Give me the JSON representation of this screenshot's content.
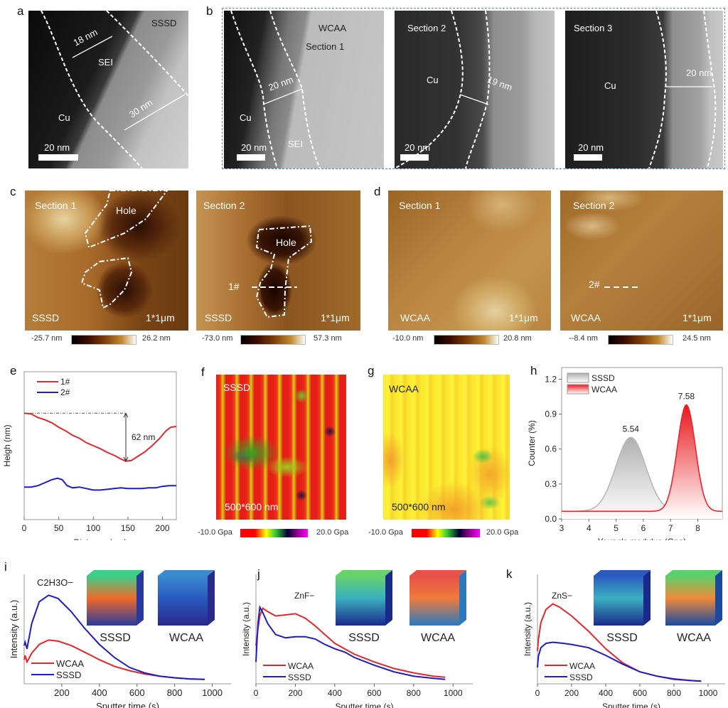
{
  "panels": {
    "a": {
      "label": "a",
      "sample": "SSSD",
      "region_label": "SEI",
      "substrate": "Cu",
      "thickness_1": "18 nm",
      "thickness_2": "30 nm",
      "scale_bar": "20 nm"
    },
    "b": {
      "label": "b",
      "sections": [
        {
          "sample": "WCAA",
          "section": "Section 1",
          "substrate": "Cu",
          "region_label": "SEI",
          "thickness": "20 nm",
          "scale_bar": "20 nm"
        },
        {
          "section": "Section 2",
          "substrate": "Cu",
          "thickness": "19 nm",
          "scale_bar": "20 nm"
        },
        {
          "section": "Section 3",
          "substrate": "Cu",
          "thickness": "20 nm",
          "scale_bar": "20 nm"
        }
      ]
    },
    "c": {
      "label": "c",
      "maps": [
        {
          "section": "Section 1",
          "sample": "SSSD",
          "size": "1*1μm",
          "hole_label": "Hole",
          "cb_min": "-25.7 nm",
          "cb_max": "26.2 nm"
        },
        {
          "section": "Section 2",
          "sample": "SSSD",
          "size": "1*1μm",
          "hole_label": "Hole",
          "line_label": "1#",
          "cb_min": "-73.0 nm",
          "cb_max": "57.3 nm"
        }
      ]
    },
    "d": {
      "label": "d",
      "maps": [
        {
          "section": "Section 1",
          "sample": "WCAA",
          "size": "1*1μm",
          "cb_min": "-10.0 nm",
          "cb_max": "20.8 nm"
        },
        {
          "section": "Section 2",
          "sample": "WCAA",
          "size": "1*1μm",
          "line_label": "2#",
          "cb_min": "--8.4 nm",
          "cb_max": "24.5 nm"
        }
      ]
    },
    "f": {
      "label": "f",
      "sample": "SSSD",
      "size": "500*600 nm",
      "cb_min": "-10.0 Gpa",
      "cb_max": "20.0 Gpa"
    },
    "g": {
      "label": "g",
      "sample": "WCAA",
      "size": "500*600 nm",
      "cb_min": "-10.0 Gpa",
      "cb_max": "20.0 Gpa"
    }
  },
  "colors": {
    "red": "#e8262a",
    "blue": "#1c1cc8",
    "gray": "#b8b8b8"
  },
  "chart_data": [
    {
      "id": "e",
      "panel_label": "e",
      "type": "line",
      "title": "",
      "xlabel": "Distance (nm)",
      "ylabel": "Heigh (nm)",
      "xlim": [
        0,
        220
      ],
      "ylim": [
        0,
        1
      ],
      "xticks": [
        0,
        50,
        100,
        150,
        200
      ],
      "yticks": [],
      "legend": "top-left",
      "annotation": "62 nm",
      "series": [
        {
          "name": "1#",
          "color": "#e8262a",
          "x": [
            0,
            10,
            20,
            30,
            40,
            50,
            60,
            70,
            80,
            90,
            100,
            110,
            120,
            130,
            140,
            147,
            155,
            165,
            175,
            185,
            195,
            205,
            212,
            220
          ],
          "y": [
            0.72,
            0.715,
            0.69,
            0.675,
            0.655,
            0.625,
            0.6,
            0.57,
            0.55,
            0.52,
            0.5,
            0.48,
            0.455,
            0.435,
            0.41,
            0.395,
            0.4,
            0.43,
            0.46,
            0.5,
            0.545,
            0.6,
            0.625,
            0.63
          ]
        },
        {
          "name": "2#",
          "color": "#1c1cc8",
          "x": [
            0,
            10,
            20,
            30,
            40,
            48,
            55,
            62,
            70,
            80,
            90,
            100,
            110,
            120,
            130,
            140,
            150,
            160,
            170,
            180,
            190,
            200,
            210,
            220
          ],
          "y": [
            0.22,
            0.22,
            0.23,
            0.25,
            0.27,
            0.28,
            0.27,
            0.23,
            0.215,
            0.22,
            0.21,
            0.2,
            0.2,
            0.205,
            0.21,
            0.215,
            0.21,
            0.21,
            0.21,
            0.215,
            0.215,
            0.225,
            0.23,
            0.23
          ]
        }
      ]
    },
    {
      "id": "h",
      "panel_label": "h",
      "type": "area",
      "title": "",
      "xlabel": "Young's modulus (Gpa)",
      "ylabel": "Counter (%)",
      "xlim": [
        3,
        8.9
      ],
      "ylim": [
        0,
        1.3
      ],
      "xticks": [
        3,
        4,
        5,
        6,
        7,
        8
      ],
      "yticks": [
        0.0,
        0.3,
        0.6,
        0.9,
        1.2
      ],
      "ytick_labels": [
        "0.0",
        "0.3",
        "0.6",
        "0.9",
        "1.2"
      ],
      "legend": "top-left",
      "series": [
        {
          "name": "SSSD",
          "color": "#b8b8b8",
          "peak_x": 5.54,
          "peak_y": 0.7,
          "baseline": 0.065,
          "sigma": 0.55,
          "peak_label": "5.54"
        },
        {
          "name": "WCAA",
          "color": "#e8262a",
          "peak_x": 7.58,
          "peak_y": 0.98,
          "baseline": 0.065,
          "sigma": 0.33,
          "peak_label": "7.58"
        }
      ]
    },
    {
      "id": "i",
      "panel_label": "i",
      "type": "line",
      "xlabel": "Sputter time (s)",
      "ylabel": "Intensity (a.u.)",
      "xlim": [
        0,
        1100
      ],
      "ylim": [
        0,
        1
      ],
      "xticks": [
        200,
        400,
        600,
        800,
        1000
      ],
      "annotation": "C2H3O−",
      "legend": "bottom-left",
      "inset_labels": [
        "SSSD",
        "WCAA"
      ],
      "series": [
        {
          "name": "WCAA",
          "color": "#e8262a",
          "x": [
            0,
            5,
            15,
            40,
            80,
            130,
            180,
            250,
            320,
            400,
            480,
            560,
            640,
            720,
            800,
            880,
            960
          ],
          "y": [
            0.22,
            0.26,
            0.2,
            0.28,
            0.36,
            0.4,
            0.39,
            0.35,
            0.29,
            0.22,
            0.16,
            0.12,
            0.09,
            0.07,
            0.055,
            0.045,
            0.04
          ]
        },
        {
          "name": "SSSD",
          "color": "#1c1cc8",
          "x": [
            0,
            5,
            15,
            40,
            80,
            130,
            180,
            250,
            320,
            400,
            480,
            560,
            640,
            720,
            800,
            880,
            960
          ],
          "y": [
            0.35,
            0.38,
            0.32,
            0.55,
            0.75,
            0.81,
            0.78,
            0.66,
            0.51,
            0.36,
            0.24,
            0.15,
            0.1,
            0.07,
            0.055,
            0.045,
            0.04
          ]
        }
      ]
    },
    {
      "id": "j",
      "panel_label": "j",
      "type": "line",
      "xlabel": "Sputter time (s)",
      "ylabel": "Intensity (a.u.)",
      "xlim": [
        0,
        1100
      ],
      "ylim": [
        0,
        1
      ],
      "xticks": [
        0,
        200,
        400,
        600,
        800,
        1000
      ],
      "annotation": "ZnF−",
      "legend": "bottom-left",
      "inset_labels": [
        "SSSD",
        "WCAA"
      ],
      "series": [
        {
          "name": "WCAA",
          "color": "#e8262a",
          "x": [
            0,
            10,
            20,
            35,
            60,
            100,
            150,
            200,
            250,
            300,
            350,
            400,
            450,
            500,
            600,
            700,
            800,
            900,
            960
          ],
          "y": [
            0.35,
            0.5,
            0.62,
            0.69,
            0.66,
            0.62,
            0.63,
            0.64,
            0.6,
            0.53,
            0.45,
            0.37,
            0.32,
            0.27,
            0.2,
            0.14,
            0.1,
            0.07,
            0.06
          ]
        },
        {
          "name": "SSSD",
          "color": "#1c1cc8",
          "x": [
            0,
            10,
            20,
            35,
            60,
            100,
            150,
            200,
            250,
            300,
            350,
            400,
            450,
            500,
            600,
            700,
            800,
            900,
            960
          ],
          "y": [
            0.2,
            0.55,
            0.7,
            0.65,
            0.55,
            0.45,
            0.42,
            0.43,
            0.43,
            0.41,
            0.36,
            0.32,
            0.29,
            0.24,
            0.17,
            0.11,
            0.07,
            0.05,
            0.04
          ]
        }
      ]
    },
    {
      "id": "k",
      "panel_label": "k",
      "type": "line",
      "xlabel": "Sputter time (s)",
      "ylabel": "Intensity (a.u.)",
      "xlim": [
        0,
        1100
      ],
      "ylim": [
        0,
        1
      ],
      "xticks": [
        0,
        200,
        400,
        600,
        800,
        1000
      ],
      "annotation": "ZnS−",
      "legend": "bottom-left",
      "inset_labels": [
        "SSSD",
        "WCAA"
      ],
      "series": [
        {
          "name": "WCAA",
          "color": "#e8262a",
          "x": [
            0,
            5,
            20,
            50,
            90,
            130,
            200,
            300,
            400,
            500,
            600,
            700,
            800,
            900,
            960
          ],
          "y": [
            0.3,
            0.4,
            0.56,
            0.68,
            0.73,
            0.7,
            0.62,
            0.48,
            0.32,
            0.19,
            0.11,
            0.07,
            0.04,
            0.03,
            0.025
          ]
        },
        {
          "name": "SSSD",
          "color": "#1c1cc8",
          "x": [
            0,
            5,
            20,
            50,
            90,
            150,
            200,
            300,
            400,
            500,
            600,
            700,
            800,
            900,
            960
          ],
          "y": [
            0.15,
            0.25,
            0.33,
            0.37,
            0.38,
            0.37,
            0.36,
            0.33,
            0.26,
            0.18,
            0.11,
            0.07,
            0.045,
            0.03,
            0.025
          ]
        }
      ]
    }
  ]
}
